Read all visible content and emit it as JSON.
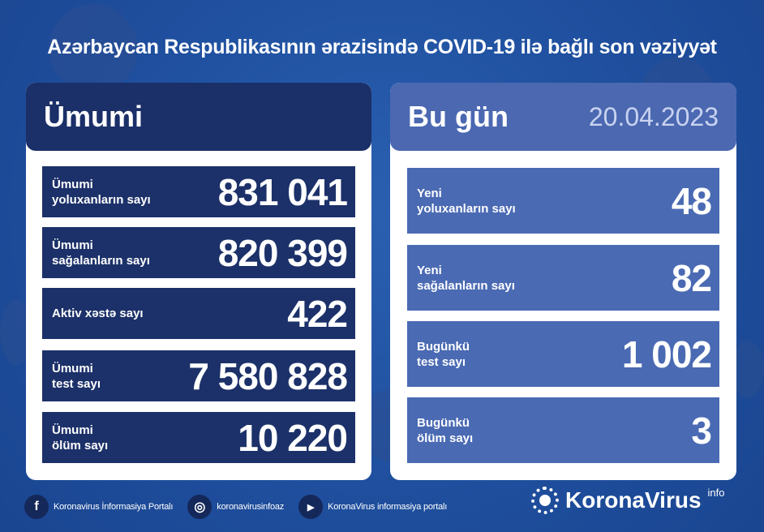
{
  "title": "Azərbaycan Respublikasının ərazisində COVID-19 ilə bağlı son vəziyyət",
  "total": {
    "heading": "Ümumi",
    "rows": [
      {
        "label": "Ümumi\nyoluxanların sayı",
        "value": "831 041"
      },
      {
        "label": "Ümumi\nsağalanların sayı",
        "value": "820 399"
      },
      {
        "label": "Aktiv xəstə sayı",
        "value": "422"
      },
      {
        "label": "Ümumi\ntest sayı",
        "value": "7 580 828"
      },
      {
        "label": "Ümumi\nölüm sayı",
        "value": "10 220"
      }
    ]
  },
  "today": {
    "heading": "Bu gün",
    "date": "20.04.2023",
    "rows": [
      {
        "label": "Yeni\nyoluxanların sayı",
        "value": "48"
      },
      {
        "label": "Yeni\nsağalanların sayı",
        "value": "82"
      },
      {
        "label": "Bugünkü\ntest sayı",
        "value": "1 002"
      },
      {
        "label": "Bugünkü\nölüm sayı",
        "value": "3"
      }
    ]
  },
  "footer": {
    "facebook": "Koronavirus İnformasiya Portalı",
    "instagram": "koronavirusinfoaz",
    "youtube": "KoronaVirus informasiya portalı"
  },
  "logo": {
    "name": "KoronaVirus",
    "sup": "info"
  },
  "colors": {
    "background": "#1f4f9e",
    "left_header": "#1b2f68",
    "right_header": "#4b68b1",
    "right_row": "#4a6ab3"
  }
}
